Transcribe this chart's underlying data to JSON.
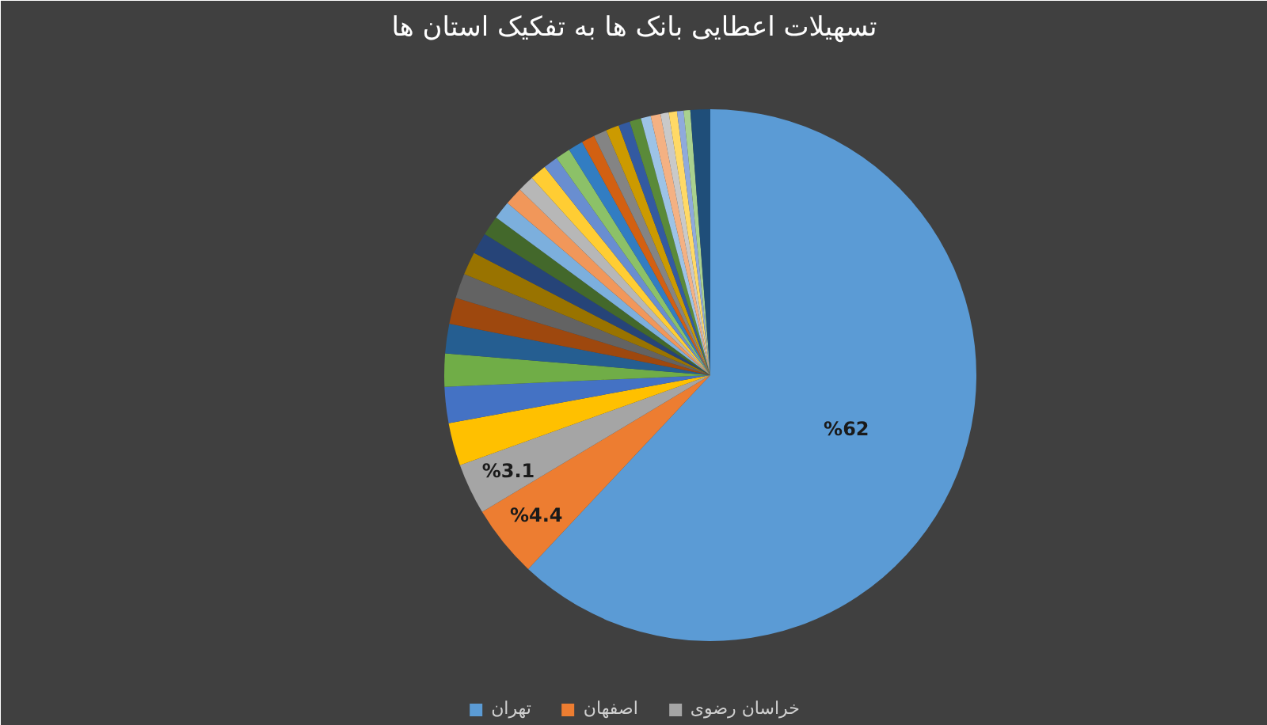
{
  "chart_data": {
    "type": "pie",
    "title": "تسهیلات اعطایی بانک ها به تفکیک استان ها",
    "categories": [
      "تهران",
      "اصفهان",
      "خراسان رضوی",
      null,
      null,
      null,
      null,
      null,
      null,
      null,
      null,
      null,
      null,
      null,
      null,
      null,
      null,
      null,
      null,
      null,
      null,
      null,
      null,
      null,
      null,
      null,
      null,
      null,
      null,
      null,
      null
    ],
    "values": [
      62,
      4.4,
      3.1,
      2.6,
      2.2,
      2.0,
      1.8,
      1.6,
      1.5,
      1.4,
      1.3,
      1.2,
      1.1,
      1.1,
      1.0,
      1.0,
      0.9,
      0.9,
      0.9,
      0.8,
      0.8,
      0.8,
      0.7,
      0.7,
      0.6,
      0.6,
      0.5,
      0.5,
      0.4,
      0.4,
      1.2
    ],
    "colors": [
      "#5b9bd5",
      "#ed7d31",
      "#a5a5a5",
      "#ffc000",
      "#4472c4",
      "#70ad47",
      "#255e91",
      "#9e480e",
      "#636363",
      "#997300",
      "#264478",
      "#43682b",
      "#7cafdd",
      "#f1975a",
      "#b7b7b7",
      "#ffcd33",
      "#698ed0",
      "#8cc168",
      "#327dc2",
      "#d26012",
      "#848484",
      "#cc9a00",
      "#335aa1",
      "#5a8a39",
      "#9dc3e6",
      "#f4b183",
      "#c9c9c9",
      "#ffd966",
      "#8faadc",
      "#a9d18e",
      "#1f4e79"
    ],
    "value_labels": [
      "%62",
      "%4.4",
      "%3.1",
      null,
      null,
      null,
      null,
      null,
      null,
      null,
      null,
      null,
      null,
      null,
      null,
      null,
      null,
      null,
      null,
      null,
      null,
      null,
      null,
      null,
      null,
      null,
      null,
      null,
      null,
      null,
      null
    ],
    "legend": "bottom"
  }
}
